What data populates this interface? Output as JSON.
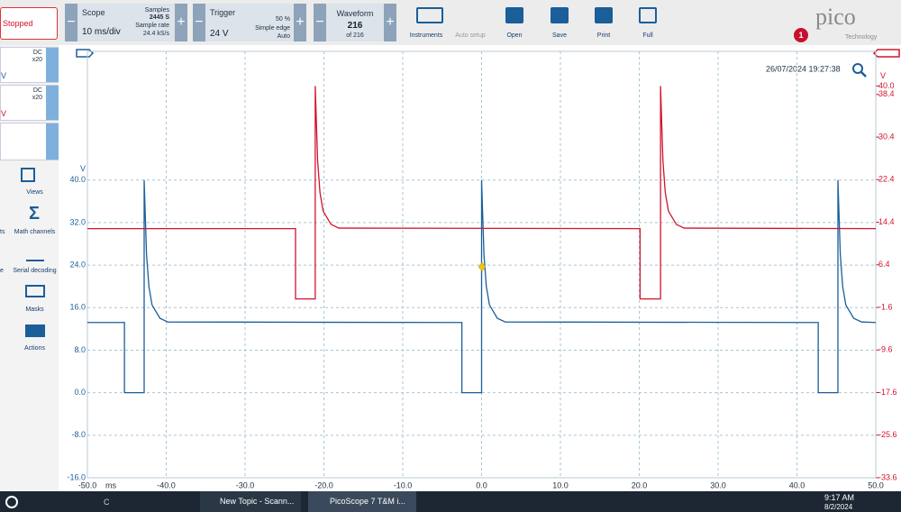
{
  "toolbar": {
    "status": "Stopped",
    "scope": {
      "title": "Scope",
      "timebase": "10 ms/div",
      "samples_label": "Samples",
      "samples": "2445 S",
      "rate_label": "Sample rate",
      "rate": "24.4 kS/s"
    },
    "trigger": {
      "title": "Trigger",
      "level": "24 V",
      "position": "50 %",
      "mode_type": "Simple edge",
      "mode": "Auto"
    },
    "waveform": {
      "title": "Waveform",
      "current": "216",
      "total": "of 216"
    },
    "buttons": [
      "Instruments",
      "Auto setup",
      "Open",
      "Save",
      "Print",
      " Full"
    ],
    "logo": "pico",
    "logo_sub": "Technology",
    "notifications": "1"
  },
  "sidebar": {
    "channels": [
      {
        "coupling": "DC",
        "probe": "x20",
        "unit": "V"
      },
      {
        "coupling": "DC",
        "probe": "x20",
        "unit": "V"
      }
    ],
    "tools": [
      "Views",
      "Math channels",
      "Serial decoding",
      "Masks",
      "Actions"
    ],
    "cut_labels": [
      "ts",
      "e"
    ]
  },
  "timestamp": "26/07/2024 19:27:38",
  "chart_data": {
    "type": "line",
    "x_label": "ms",
    "y_label": "V",
    "y2_label": "V",
    "xlim": [
      -50,
      50
    ],
    "xticks": [
      {
        "value": -50,
        "label": "-50.0"
      },
      {
        "value": -40,
        "label": "-40.0"
      },
      {
        "value": -30,
        "label": "-30.0"
      },
      {
        "value": -20,
        "label": "-20.0"
      },
      {
        "value": -10,
        "label": "-10.0"
      },
      {
        "value": 0,
        "label": "0.0"
      },
      {
        "value": 10,
        "label": "10.0"
      },
      {
        "value": 20,
        "label": "20.0"
      },
      {
        "value": 30,
        "label": "30.0"
      },
      {
        "value": 40,
        "label": "40.0"
      },
      {
        "value": 50,
        "label": "50.0"
      }
    ],
    "ylim": [
      -16,
      64.2
    ],
    "yticks": [
      {
        "value": 40,
        "label": "40.0"
      },
      {
        "value": 32,
        "label": "32.0"
      },
      {
        "value": 24,
        "label": "24.0"
      },
      {
        "value": 16,
        "label": "16.0"
      },
      {
        "value": 8,
        "label": "8.0"
      },
      {
        "value": 0,
        "label": "0.0"
      },
      {
        "value": -8,
        "label": "-8.0"
      },
      {
        "value": -16,
        "label": "-16.0"
      }
    ],
    "y2lim": [
      -33.6,
      46.5
    ],
    "y2ticks": [
      {
        "value": 40,
        "label": "40.0"
      },
      38.4,
      30.4,
      22.4,
      14.4,
      6.4,
      -1.6,
      -9.6,
      -17.6,
      -25.6,
      -33.6
    ],
    "grid": true,
    "series": [
      {
        "color": "#1a5e9a",
        "x": [
          -50,
          -45.3,
          -45.3,
          -42.8,
          -42.8,
          -42.5,
          -42.2,
          -41.8,
          -40.8,
          -39.8,
          -2.5,
          -2.5,
          0,
          0,
          0.3,
          0.6,
          1,
          2,
          3,
          42.7,
          42.7,
          45.2,
          45.2,
          45.5,
          45.8,
          46.2,
          47.2,
          48.2,
          50
        ],
        "values": [
          13.2,
          13.2,
          0,
          0,
          40,
          26,
          20,
          16.5,
          14,
          13.3,
          13.2,
          0,
          0,
          40,
          26,
          20,
          16.5,
          14,
          13.3,
          13.2,
          0,
          0,
          40,
          26,
          20,
          16.5,
          14,
          13.3,
          13.2
        ]
      },
      {
        "color": "#d0142c",
        "axis": "y2",
        "x": [
          -50,
          -23.6,
          -23.6,
          -21.1,
          -21.1,
          -20.8,
          -20.5,
          -20.1,
          -19.1,
          -18.1,
          20.1,
          20.1,
          22.7,
          22.7,
          23.0,
          23.3,
          23.7,
          24.7,
          25.7,
          50
        ],
        "values": [
          13.2,
          13.2,
          0,
          0,
          40,
          26,
          20,
          16.5,
          14,
          13.3,
          13.2,
          0,
          0,
          40,
          26,
          20,
          16.5,
          14,
          13.3,
          13.2
        ]
      }
    ]
  },
  "taskbar": {
    "apps": [
      "C",
      "New Topic - Scann...",
      "PicoScope 7 T&M i..."
    ],
    "time": "9:17 AM",
    "date": "8/2/2024"
  }
}
